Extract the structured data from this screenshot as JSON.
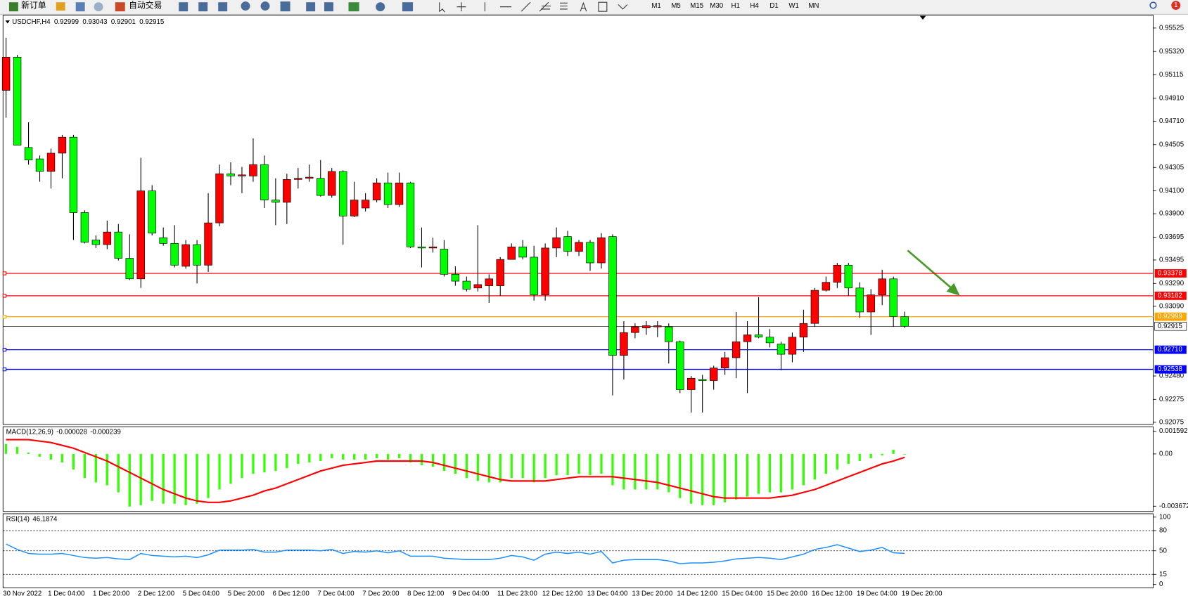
{
  "toolbar": {
    "new_order": "新订单",
    "auto_trading": "自动交易",
    "timeframes": [
      "M1",
      "M5",
      "M15",
      "M30",
      "H1",
      "H4",
      "D1",
      "W1",
      "MN"
    ],
    "notifications": "1"
  },
  "chart_data": [
    {
      "type": "candlestick",
      "symbol": "USDCHF,H4",
      "up_color": "#ff0000",
      "down_color": "#00ff00",
      "categories": [
        "30 Nov 2022",
        null,
        null,
        null,
        "1 Dec 04:00",
        null,
        null,
        null,
        "1 Dec 20:00",
        null,
        null,
        null,
        "2 Dec 12:00",
        null,
        null,
        null,
        "5 Dec 04:00",
        null,
        null,
        null,
        "5 Dec 20:00",
        null,
        null,
        null,
        "6 Dec 12:00",
        null,
        null,
        null,
        "7 Dec 04:00",
        null,
        null,
        null,
        "7 Dec 20:00",
        null,
        null,
        null,
        "8 Dec 12:00",
        null,
        null,
        null,
        "9 Dec 04:00",
        null,
        null,
        null,
        "11 Dec 23:00",
        null,
        null,
        null,
        "12 Dec 12:00",
        null,
        null,
        null,
        "13 Dec 04:00",
        null,
        null,
        null,
        "13 Dec 20:00",
        null,
        null,
        null,
        "14 Dec 12:00",
        null,
        null,
        null,
        "15 Dec 04:00",
        null,
        null,
        null,
        "15 Dec 20:00",
        null,
        null,
        null,
        "16 Dec 12:00",
        null,
        null,
        null,
        "19 Dec 04:00",
        null,
        null,
        null,
        "19 Dec 20:00"
      ],
      "open": [
        0.9498,
        0.9527,
        0.9448,
        0.9438,
        0.9427,
        0.9443,
        0.9457,
        0.9391,
        0.9367,
        0.9363,
        0.9374,
        0.9351,
        0.9333,
        0.941,
        0.9369,
        0.9364,
        0.9344,
        0.9363,
        0.9345,
        0.9382,
        0.9425,
        0.9423,
        0.9423,
        0.9433,
        0.9402,
        0.94,
        0.942,
        0.9421,
        0.9421,
        0.9406,
        0.9427,
        0.9388,
        0.9395,
        0.9402,
        0.9417,
        0.9398,
        0.9417,
        0.9361,
        0.936,
        0.9359,
        0.9337,
        0.9331,
        0.9325,
        0.9327,
        0.9327,
        0.935,
        0.9361,
        0.9352,
        0.9319,
        0.936,
        0.937,
        0.9357,
        0.9365,
        0.9347,
        0.937,
        0.9266,
        0.9286,
        0.929,
        0.9291,
        0.9291,
        0.9278,
        0.9236,
        0.9245,
        0.9244,
        0.9255,
        0.9264,
        0.9278,
        0.9284,
        0.9282,
        0.9276,
        0.9267,
        0.9282,
        0.9294,
        0.9323,
        0.933,
        0.9345,
        0.9325,
        0.9304,
        0.9319,
        0.9333,
        0.92999
      ],
      "high": [
        0.9544,
        0.9529,
        0.947,
        0.9441,
        0.9447,
        0.9459,
        0.9459,
        0.9393,
        0.9371,
        0.9384,
        0.9381,
        0.9372,
        0.9439,
        0.9415,
        0.9378,
        0.938,
        0.9367,
        0.9367,
        0.9408,
        0.9433,
        0.9435,
        0.9431,
        0.9456,
        0.9441,
        0.9421,
        0.9425,
        0.943,
        0.9433,
        0.9437,
        0.943,
        0.9428,
        0.9418,
        0.9408,
        0.9421,
        0.9426,
        0.9426,
        0.9418,
        0.9378,
        0.9369,
        0.9367,
        0.9344,
        0.9335,
        0.938,
        0.9337,
        0.9352,
        0.9364,
        0.9367,
        0.9362,
        0.9364,
        0.9378,
        0.9375,
        0.9367,
        0.9367,
        0.9373,
        0.9372,
        0.9296,
        0.9294,
        0.9296,
        0.9296,
        0.9294,
        0.9279,
        0.9248,
        0.9249,
        0.9257,
        0.9269,
        0.9304,
        0.9296,
        0.9317,
        0.9289,
        0.9278,
        0.9286,
        0.9306,
        0.9325,
        0.9335,
        0.9347,
        0.9347,
        0.933,
        0.9324,
        0.9341,
        0.9335,
        0.93043
      ],
      "low": [
        0.9474,
        0.945,
        0.9433,
        0.9418,
        0.9412,
        0.9421,
        0.9367,
        0.9364,
        0.936,
        0.9359,
        0.9349,
        0.9332,
        0.9325,
        0.9371,
        0.9362,
        0.9343,
        0.9342,
        0.9329,
        0.9339,
        0.9379,
        0.9415,
        0.9408,
        0.9418,
        0.9395,
        0.938,
        0.9381,
        0.9412,
        0.9418,
        0.9405,
        0.9404,
        0.9363,
        0.9387,
        0.9392,
        0.94,
        0.9395,
        0.9396,
        0.936,
        0.9343,
        0.9356,
        0.9335,
        0.9327,
        0.9322,
        0.9322,
        0.9312,
        0.9318,
        0.935,
        0.935,
        0.9314,
        0.9314,
        0.9352,
        0.9353,
        0.9353,
        0.934,
        0.9342,
        0.9231,
        0.9245,
        0.9281,
        0.9284,
        0.9282,
        0.9259,
        0.9233,
        0.9216,
        0.9216,
        0.9236,
        0.9249,
        0.9246,
        0.9233,
        0.9281,
        0.9273,
        0.9253,
        0.926,
        0.9269,
        0.9291,
        0.9322,
        0.9325,
        0.9318,
        0.9299,
        0.9284,
        0.931,
        0.9291,
        0.92901
      ],
      "close": [
        0.9527,
        0.945,
        0.9437,
        0.9427,
        0.9443,
        0.9457,
        0.9391,
        0.9365,
        0.9363,
        0.9374,
        0.9351,
        0.9333,
        0.941,
        0.9373,
        0.9364,
        0.9345,
        0.9363,
        0.9345,
        0.9382,
        0.9425,
        0.9423,
        0.9424,
        0.9433,
        0.9402,
        0.94,
        0.942,
        0.9421,
        0.9422,
        0.9406,
        0.9427,
        0.9388,
        0.9402,
        0.9402,
        0.9417,
        0.9398,
        0.9417,
        0.9361,
        0.936,
        0.9361,
        0.9337,
        0.9331,
        0.9324,
        0.9328,
        0.9333,
        0.935,
        0.9361,
        0.9352,
        0.9319,
        0.936,
        0.9369,
        0.9357,
        0.9365,
        0.9347,
        0.9369,
        0.9266,
        0.9286,
        0.9291,
        0.9292,
        0.9292,
        0.9278,
        0.9236,
        0.9246,
        0.9244,
        0.9255,
        0.9264,
        0.9278,
        0.9284,
        0.9282,
        0.9277,
        0.9267,
        0.9282,
        0.9294,
        0.9323,
        0.933,
        0.9345,
        0.9325,
        0.9304,
        0.9319,
        0.9333,
        0.93,
        0.92915
      ],
      "ylim": [
        0.92056,
        0.95638
      ],
      "yticks": [
        {
          "value": 0.95525,
          "label": "0.95525"
        },
        {
          "value": 0.9532,
          "label": "0.95320"
        },
        {
          "value": 0.95115,
          "label": "0.95115"
        },
        {
          "value": 0.9491,
          "label": "0.94910"
        },
        {
          "value": 0.9471,
          "label": "0.94710"
        },
        {
          "value": 0.94505,
          "label": "0.94505"
        },
        {
          "value": 0.94305,
          "label": "0.94305"
        },
        {
          "value": 0.941,
          "label": "0.94100"
        },
        {
          "value": 0.939,
          "label": "0.93900"
        },
        {
          "value": 0.93695,
          "label": "0.93695"
        },
        {
          "value": 0.93495,
          "label": "0.93495"
        },
        {
          "value": 0.9329,
          "label": "0.93290"
        },
        {
          "value": 0.9309,
          "label": "0.93090"
        },
        {
          "value": 0.9248,
          "label": "0.92480"
        },
        {
          "value": 0.92275,
          "label": "0.92275"
        },
        {
          "value": 0.92075,
          "label": "0.92075"
        }
      ],
      "levels": [
        {
          "value": 0.93378,
          "color": "#ff0000"
        },
        {
          "value": 0.93182,
          "color": "#ff0000"
        },
        {
          "value": 0.92999,
          "color": "#ffa500"
        },
        {
          "value": 0.9271,
          "label": "0.92710",
          "color": "#0000ff"
        },
        {
          "value": 0.92538,
          "color": "#0000ff"
        }
      ]
    },
    {
      "type": "macd",
      "title": "MACD(12,26,9)",
      "histogram_color": "#33ff00",
      "signal_color": "#ff0000",
      "histogram": [
        0.0007,
        0.0005,
        0.0001,
        -0.0002,
        -0.0004,
        -0.0006,
        -0.0011,
        -0.0017,
        -0.002,
        -0.0022,
        -0.0027,
        -0.0037,
        -0.0036,
        -0.0033,
        -0.0035,
        -0.0035,
        -0.0036,
        -0.0035,
        -0.0031,
        -0.0025,
        -0.0021,
        -0.0017,
        -0.0014,
        -0.0013,
        -0.0012,
        -0.001,
        -0.0007,
        -0.0006,
        -0.0005,
        -0.0003,
        -0.0004,
        -0.0004,
        -0.0004,
        -0.0003,
        -0.0004,
        -0.0003,
        -0.0006,
        -0.0008,
        -0.0009,
        -0.0012,
        -0.0014,
        -0.0017,
        -0.0019,
        -0.002,
        -0.002,
        -0.0017,
        -0.0017,
        -0.002,
        -0.0017,
        -0.0015,
        -0.0015,
        -0.0014,
        -0.0015,
        -0.0014,
        -0.0022,
        -0.0025,
        -0.0025,
        -0.0025,
        -0.0025,
        -0.0027,
        -0.0031,
        -0.0035,
        -0.0036,
        -0.0036,
        -0.0034,
        -0.0032,
        -0.003,
        -0.0028,
        -0.0027,
        -0.0027,
        -0.0025,
        -0.0022,
        -0.0018,
        -0.0014,
        -0.0011,
        -0.0007,
        -0.0005,
        -0.0003,
        -0.0001,
        0.0003,
        -2.8e-05
      ],
      "signal": [
        0.001,
        0.001,
        0.001,
        0.0009,
        0.0008,
        0.0006,
        0.0004,
        0.0001,
        -0.0002,
        -0.0005,
        -0.0009,
        -0.0013,
        -0.0017,
        -0.0021,
        -0.0025,
        -0.0028,
        -0.0031,
        -0.0033,
        -0.0034,
        -0.0034,
        -0.0033,
        -0.0031,
        -0.0029,
        -0.0026,
        -0.0024,
        -0.0021,
        -0.0018,
        -0.0015,
        -0.0012,
        -0.001,
        -0.0008,
        -0.0007,
        -0.0006,
        -0.0005,
        -0.0005,
        -0.0005,
        -0.0005,
        -0.0005,
        -0.0006,
        -0.0008,
        -0.001,
        -0.0012,
        -0.0014,
        -0.0016,
        -0.0018,
        -0.0019,
        -0.0019,
        -0.0019,
        -0.0019,
        -0.0018,
        -0.0017,
        -0.0016,
        -0.0016,
        -0.0016,
        -0.0016,
        -0.0017,
        -0.0018,
        -0.0019,
        -0.002,
        -0.0022,
        -0.0024,
        -0.0026,
        -0.0028,
        -0.003,
        -0.0031,
        -0.0031,
        -0.0031,
        -0.0031,
        -0.0031,
        -0.003,
        -0.0029,
        -0.0027,
        -0.0025,
        -0.0022,
        -0.0019,
        -0.0016,
        -0.0013,
        -0.001,
        -0.0007,
        -0.0005,
        -0.000239
      ],
      "ylim": [
        -0.00404,
        0.00191
      ],
      "yticks": [
        0.001592,
        {
          "value": 0,
          "label": "0.00"
        },
        -0.003672
      ]
    },
    {
      "type": "rsi",
      "title": "RSI(14)",
      "color": "#1e90ff",
      "values": [
        60,
        52,
        46,
        45,
        45,
        46,
        43,
        40,
        39,
        40,
        38,
        37,
        46,
        43,
        42,
        41,
        42,
        40,
        44,
        51,
        51,
        51,
        52,
        48,
        48,
        51,
        51,
        51,
        50,
        52,
        46,
        49,
        48,
        50,
        47,
        50,
        42,
        42,
        42,
        39,
        38,
        37,
        37,
        37,
        39,
        43,
        41,
        36,
        45,
        48,
        46,
        48,
        45,
        49,
        32,
        36,
        37,
        37,
        37,
        35,
        31,
        32,
        32,
        33,
        35,
        38,
        39,
        40,
        39,
        37,
        41,
        45,
        52,
        55,
        59,
        54,
        49,
        51,
        55,
        47,
        46.1874
      ],
      "ylim": [
        -5,
        105
      ],
      "yticks": [
        100,
        80,
        50,
        15,
        0
      ],
      "levels": [
        80,
        50,
        15
      ]
    }
  ]
}
